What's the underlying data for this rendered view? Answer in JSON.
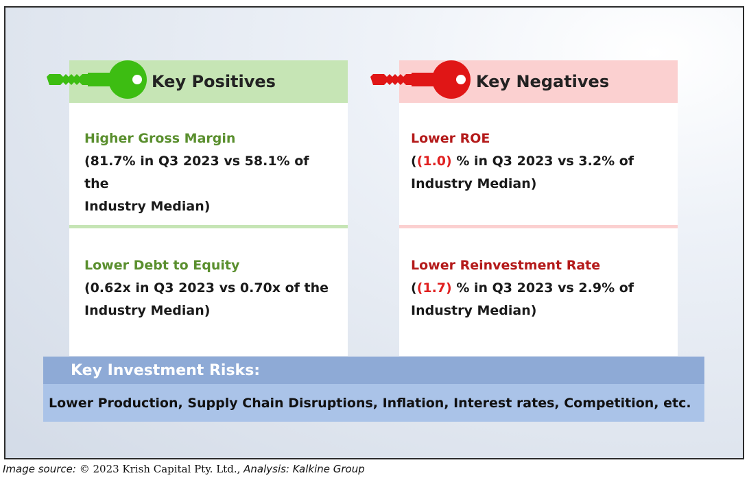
{
  "positives": {
    "header": "Key Positives",
    "items": [
      {
        "title": "Higher Gross Margin",
        "line1": "(81.7% in Q3 2023 vs 58.1% of the",
        "line2": "Industry Median)"
      },
      {
        "title": "Lower Debt to Equity",
        "line1": "(0.62x in Q3 2023 vs 0.70x of the",
        "line2": "Industry Median)"
      }
    ]
  },
  "negatives": {
    "header": "Key Negatives",
    "items": [
      {
        "title": "Lower ROE",
        "prefix": "(",
        "value": "(1.0)",
        "rest": " % in Q3 2023 vs 3.2% of",
        "line2": "Industry Median)"
      },
      {
        "title": "Lower Reinvestment Rate",
        "prefix": "(",
        "value": "(1.7)",
        "rest": " % in Q3 2023 vs 2.9% of",
        "line2": "Industry Median)"
      }
    ]
  },
  "risks": {
    "header": "Key Investment Risks:",
    "text": "Lower Production, Supply Chain Disruptions, Inflation, Interest rates, Competition, etc."
  },
  "source": {
    "label": "Image source: ",
    "copyright": "© 2023 Krish Capital Pty. Ltd.,",
    "analysis": " Analysis: Kalkine Group"
  },
  "colors": {
    "positive_header_bg": "#c6e5b5",
    "negative_header_bg": "#fbd0d0",
    "positive_key": "#3dbd12",
    "negative_key": "#e01616",
    "positive_title": "#5a8f2e",
    "negative_title": "#b41a1a",
    "risks_header_bg": "#8eaad6",
    "risks_body_bg": "#aac3e8"
  },
  "icons": {
    "positive": "green-key-icon",
    "negative": "red-key-icon"
  }
}
